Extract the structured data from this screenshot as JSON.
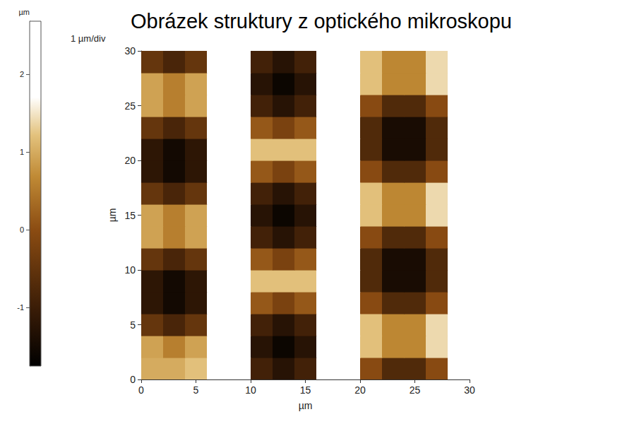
{
  "chart_data": {
    "type": "heatmap",
    "title": "Obrázek struktury z optického mikroskopu",
    "annotation": "1 µm/div",
    "xlabel": "µm",
    "ylabel": "µm",
    "xlim": [
      0,
      30
    ],
    "xticks": [
      0,
      5,
      10,
      15,
      20,
      25,
      30
    ],
    "ylim": [
      0,
      30
    ],
    "yticks": [
      0,
      5,
      10,
      15,
      20,
      25,
      30
    ],
    "grid": false,
    "x": [
      1,
      3,
      5,
      7,
      9,
      11,
      13,
      15,
      17,
      19,
      21,
      23,
      25,
      27,
      29
    ],
    "y": [
      1,
      3,
      5,
      7,
      9,
      11,
      13,
      15,
      17,
      19,
      21,
      23,
      25,
      27,
      29
    ],
    "values": [
      [
        1.0,
        1.0,
        1.2,
        2.0,
        2.0,
        -0.91,
        -1.25,
        -0.91,
        2.0,
        2.0,
        -0.04,
        -0.73,
        -0.73,
        -0.04,
        2.2
      ],
      [
        0.91,
        0.57,
        0.91,
        2.0,
        2.0,
        -1.25,
        -1.6,
        -1.25,
        2.0,
        2.0,
        1.2,
        0.65,
        0.65,
        1.4,
        2.2
      ],
      [
        -0.47,
        -0.82,
        -0.47,
        2.0,
        2.0,
        -0.91,
        -1.25,
        -0.91,
        2.0,
        2.0,
        1.2,
        0.65,
        0.65,
        1.4,
        2.2
      ],
      [
        -1.17,
        -1.51,
        -1.17,
        2.0,
        2.0,
        0.13,
        -0.21,
        0.13,
        2.0,
        2.0,
        -0.04,
        -0.73,
        -0.73,
        -0.04,
        2.2
      ],
      [
        -1.17,
        -1.51,
        -1.17,
        2.0,
        2.0,
        1.2,
        1.2,
        1.2,
        2.0,
        2.0,
        -0.73,
        -1.43,
        -1.43,
        -0.73,
        2.2
      ],
      [
        -0.47,
        -0.82,
        -0.47,
        2.0,
        2.0,
        0.13,
        -0.21,
        0.13,
        2.0,
        2.0,
        -0.73,
        -1.43,
        -1.43,
        -0.73,
        2.2
      ],
      [
        0.91,
        0.57,
        0.91,
        2.0,
        2.0,
        -0.91,
        -1.25,
        -0.91,
        2.0,
        2.0,
        -0.04,
        -0.73,
        -0.73,
        -0.04,
        2.2
      ],
      [
        0.91,
        0.57,
        0.91,
        2.0,
        2.0,
        -1.25,
        -1.6,
        -1.25,
        2.0,
        2.0,
        1.2,
        0.65,
        0.65,
        1.4,
        2.2
      ],
      [
        -0.47,
        -0.82,
        -0.47,
        2.0,
        2.0,
        -0.91,
        -1.25,
        -0.91,
        2.0,
        2.0,
        1.2,
        0.65,
        0.65,
        1.4,
        2.2
      ],
      [
        -1.17,
        -1.51,
        -1.17,
        2.0,
        2.0,
        0.13,
        -0.21,
        0.13,
        2.0,
        2.0,
        -0.04,
        -0.73,
        -0.73,
        -0.04,
        2.2
      ],
      [
        -1.17,
        -1.51,
        -1.17,
        2.0,
        2.0,
        1.2,
        1.2,
        1.2,
        2.0,
        2.0,
        -0.73,
        -1.43,
        -1.43,
        -0.73,
        2.2
      ],
      [
        -0.47,
        -0.82,
        -0.47,
        2.0,
        2.0,
        0.13,
        -0.21,
        0.13,
        2.0,
        2.0,
        -0.73,
        -1.43,
        -1.43,
        -0.73,
        2.2
      ],
      [
        0.91,
        0.57,
        0.91,
        2.0,
        2.0,
        -0.91,
        -1.25,
        -0.91,
        2.0,
        2.0,
        -0.04,
        -0.73,
        -0.73,
        -0.04,
        2.2
      ],
      [
        0.91,
        0.57,
        0.91,
        2.0,
        2.0,
        -1.25,
        -1.6,
        -1.25,
        2.0,
        2.0,
        1.2,
        0.65,
        0.65,
        1.4,
        2.2
      ],
      [
        -0.47,
        -0.82,
        -0.47,
        2.0,
        2.0,
        -0.91,
        -1.25,
        -0.91,
        2.0,
        2.0,
        1.2,
        0.65,
        0.65,
        1.4,
        2.2
      ]
    ],
    "colorbar": {
      "label": "µm",
      "range": [
        -1.75,
        2.68
      ],
      "ticks": [
        -1,
        0,
        1,
        2
      ]
    }
  }
}
